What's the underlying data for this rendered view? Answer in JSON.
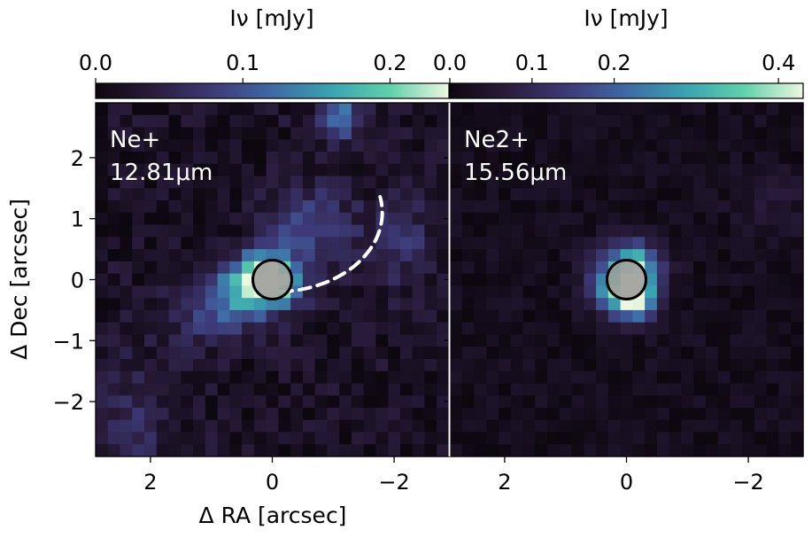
{
  "chart_data": {
    "type": "heatmap",
    "xlabel": "Δ RA [arcsec]",
    "ylabel": "Δ Dec [arcsec]",
    "xlim": [
      2.9,
      -2.9
    ],
    "ylim": [
      -2.9,
      2.9
    ],
    "x_ticks": [
      2,
      0,
      -2
    ],
    "x_tick_labels": [
      "2",
      "0",
      "−2"
    ],
    "y_ticks": [
      2,
      1,
      0,
      -1,
      -2
    ],
    "y_tick_labels": [
      "2",
      "1",
      "0",
      "−1",
      "−2"
    ],
    "colormap": [
      "#0d0710",
      "#2a1d3d",
      "#3d3a78",
      "#3f6aa6",
      "#3aa3b0",
      "#5fd1ac",
      "#edf7df"
    ],
    "panels": [
      {
        "line": "Ne+",
        "wavelength": "12.81μm",
        "colorbar_label": "Iν [mJy]",
        "colorbar_range": [
          0.0,
          0.24
        ],
        "colorbar_ticks": [
          0.0,
          0.1,
          0.2
        ],
        "colorbar_tick_labels": [
          "0.0",
          "0.1",
          "0.2"
        ],
        "arc": true,
        "blobs": [
          {
            "x": 0.0,
            "y": 0.0,
            "sx": 0.35,
            "sy": 0.3,
            "amp": 0.19
          },
          {
            "x": 0.25,
            "y": 0.05,
            "sx": 0.3,
            "sy": 0.25,
            "amp": 0.1
          },
          {
            "x": 0.6,
            "y": -0.25,
            "sx": 0.45,
            "sy": 0.3,
            "amp": 0.08
          },
          {
            "x": -0.6,
            "y": 0.9,
            "sx": 0.5,
            "sy": 0.45,
            "amp": 0.07
          },
          {
            "x": -1.1,
            "y": 2.7,
            "sx": 0.25,
            "sy": 0.3,
            "amp": 0.11
          },
          {
            "x": -2.1,
            "y": 0.6,
            "sx": 0.4,
            "sy": 0.5,
            "amp": 0.05
          },
          {
            "x": 1.0,
            "y": -0.6,
            "sx": 0.6,
            "sy": 0.35,
            "amp": 0.05
          },
          {
            "x": 2.3,
            "y": -2.3,
            "sx": 0.5,
            "sy": 0.6,
            "amp": 0.04
          }
        ],
        "background": 0.018,
        "noise": 0.022
      },
      {
        "line": "Ne2+",
        "wavelength": "15.56μm",
        "colorbar_label": "Iν [mJy]",
        "colorbar_range": [
          0.0,
          0.43
        ],
        "colorbar_ticks": [
          0.0,
          0.1,
          0.2,
          0.4
        ],
        "colorbar_tick_labels": [
          "0.0",
          "0.1",
          "0.2",
          "0.4"
        ],
        "arc": false,
        "blobs": [
          {
            "x": 0.0,
            "y": 0.0,
            "sx": 0.35,
            "sy": 0.35,
            "amp": 0.36
          },
          {
            "x": -0.15,
            "y": -0.35,
            "sx": 0.2,
            "sy": 0.2,
            "amp": 0.28
          },
          {
            "x": -0.2,
            "y": 0.3,
            "sx": 0.2,
            "sy": 0.2,
            "amp": 0.15
          },
          {
            "x": 0.35,
            "y": -0.3,
            "sx": 0.2,
            "sy": 0.2,
            "amp": 0.08
          },
          {
            "x": -2.4,
            "y": 1.2,
            "sx": 0.4,
            "sy": 0.3,
            "amp": 0.04
          }
        ],
        "background": 0.02,
        "noise": 0.022
      }
    ]
  }
}
